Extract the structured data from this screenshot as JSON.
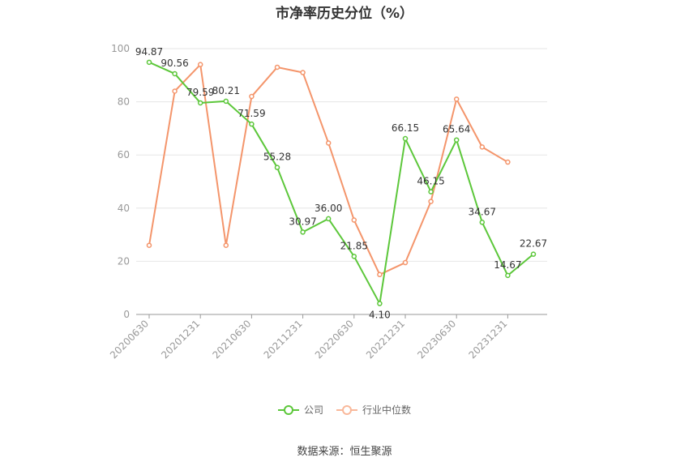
{
  "chart_data": {
    "type": "line",
    "title": "市净率历史分位（%）",
    "source": "数据来源：恒生聚源",
    "ylim": [
      0,
      100
    ],
    "yticks": [
      0,
      20,
      40,
      60,
      80,
      100
    ],
    "x": [
      "20200630",
      "20200930",
      "20201231",
      "20210331",
      "20210630",
      "20210930",
      "20211231",
      "20220331",
      "20220630",
      "20220930",
      "20221231",
      "20230331",
      "20230630",
      "20230930",
      "20231231",
      "20240331"
    ],
    "xtick_labels": [
      "20200630",
      "20201231",
      "20210630",
      "20211231",
      "20220630",
      "20221231",
      "20230630",
      "20231231"
    ],
    "grid": true,
    "legend_position": "bottom",
    "series": [
      {
        "name": "公司",
        "color": "#5cc73a",
        "values": [
          94.87,
          90.56,
          79.59,
          80.21,
          71.59,
          55.28,
          30.97,
          36.0,
          21.85,
          4.1,
          66.15,
          46.15,
          65.64,
          34.67,
          14.67,
          22.67
        ],
        "labels": [
          "94.87",
          "90.56",
          "79.59",
          "80.21",
          "71.59",
          "55.28",
          "30.97",
          "36.00",
          "21.85",
          "4.10",
          "66.15",
          "46.15",
          "65.64",
          "34.67",
          "14.67",
          "22.67"
        ]
      },
      {
        "name": "行业中位数",
        "color": "#f4956b",
        "values": [
          26,
          84,
          94,
          26,
          82,
          93,
          91,
          64.5,
          35.5,
          15,
          19.5,
          42.5,
          81,
          63,
          57.3,
          null
        ]
      }
    ]
  }
}
